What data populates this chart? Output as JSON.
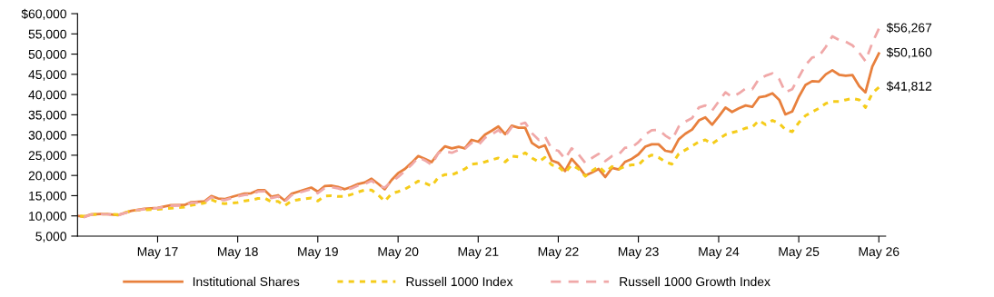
{
  "chart_data": {
    "type": "line",
    "x": [
      "2016-05",
      "2016-06",
      "2016-07",
      "2016-09",
      "2016-11",
      "2017-01",
      "2017-03",
      "2017-05",
      "2017-07",
      "2017-09",
      "2017-10",
      "2017-12",
      "2018-01",
      "2018-02",
      "2018-03",
      "2018-05",
      "2018-06",
      "2018-07",
      "2018-08",
      "2018-09",
      "2018-10",
      "2018-11",
      "2018-12",
      "2019-01",
      "2019-02",
      "2019-04",
      "2019-05",
      "2019-06",
      "2019-07",
      "2019-08",
      "2019-09",
      "2019-10",
      "2019-11",
      "2019-12",
      "2020-01",
      "2020-02",
      "2020-03",
      "2020-04",
      "2020-05",
      "2020-06",
      "2020-07",
      "2020-08",
      "2020-09",
      "2020-10",
      "2020-11",
      "2020-12",
      "2021-01",
      "2021-02",
      "2021-03",
      "2021-04",
      "2021-05",
      "2021-06",
      "2021-07",
      "2021-08",
      "2021-09",
      "2021-10",
      "2021-11",
      "2021-12",
      "2022-01",
      "2022-02",
      "2022-03",
      "2022-04",
      "2022-05",
      "2022-06",
      "2022-07",
      "2022-08",
      "2022-09",
      "2022-10",
      "2022-11",
      "2022-12",
      "2023-01",
      "2023-02",
      "2023-03",
      "2023-04",
      "2023-05",
      "2023-06",
      "2023-07",
      "2023-08",
      "2023-09",
      "2023-10",
      "2023-11",
      "2023-12",
      "2024-01",
      "2024-02",
      "2024-03",
      "2024-04",
      "2024-05",
      "2024-06",
      "2024-07",
      "2024-08",
      "2024-09",
      "2024-10",
      "2024-11",
      "2024-12",
      "2025-01",
      "2025-02",
      "2025-03",
      "2025-04",
      "2025-05",
      "2025-06",
      "2025-07",
      "2025-08",
      "2025-09",
      "2025-10",
      "2025-11",
      "2025-12",
      "2026-01",
      "2026-02",
      "2026-03",
      "2026-04",
      "2026-05"
    ],
    "series": [
      {
        "name": "Institutional Shares",
        "color": "#e8803d",
        "line_style": "solid",
        "values": [
          10000,
          9800,
          10350,
          10500,
          10200,
          11250,
          11750,
          12000,
          12650,
          12700,
          13400,
          13600,
          14900,
          14300,
          14150,
          15100,
          15500,
          15600,
          16350,
          16350,
          14750,
          15100,
          13800,
          15450,
          16000,
          17000,
          16000,
          17350,
          17500,
          17150,
          16600,
          17150,
          17900,
          18250,
          19200,
          17900,
          16600,
          18850,
          20560,
          21600,
          23100,
          24800,
          24100,
          23300,
          25600,
          27200,
          26700,
          27100,
          26700,
          28800,
          28350,
          30100,
          31050,
          32100,
          30200,
          32300,
          31800,
          31800,
          28050,
          26900,
          27450,
          23700,
          23100,
          21100,
          24100,
          22200,
          20000,
          20700,
          21600,
          19600,
          21850,
          21450,
          23350,
          24100,
          25200,
          27100,
          27700,
          27700,
          26100,
          25800,
          28950,
          30300,
          31350,
          33600,
          34350,
          32550,
          34550,
          36800,
          35700,
          36600,
          37300,
          36950,
          39300,
          39600,
          40300,
          38700,
          35100,
          35800,
          39400,
          42400,
          43300,
          43200,
          45000,
          46000,
          44900,
          44650,
          44800,
          42050,
          40550,
          46900,
          50160
        ]
      },
      {
        "name": "Russell 1000 Index",
        "color": "#f5cc1a",
        "line_style": "dotted",
        "values": [
          10000,
          9900,
          10300,
          10500,
          10300,
          11250,
          11500,
          11600,
          11900,
          12200,
          12600,
          13200,
          14000,
          13300,
          13000,
          13300,
          13700,
          13900,
          14300,
          14400,
          13500,
          13600,
          12500,
          13700,
          14000,
          14400,
          13700,
          14900,
          15000,
          14800,
          14800,
          15300,
          15900,
          16400,
          16400,
          15150,
          13600,
          15500,
          16000,
          16600,
          17550,
          18600,
          18100,
          17350,
          19600,
          20200,
          20150,
          20870,
          21600,
          22750,
          22950,
          23350,
          23850,
          24300,
          23350,
          24800,
          24600,
          25600,
          24300,
          23350,
          24450,
          22600,
          22200,
          20700,
          22600,
          21600,
          19800,
          21100,
          22200,
          20700,
          22200,
          21600,
          22200,
          22600,
          22600,
          24250,
          25050,
          24450,
          23350,
          22800,
          25350,
          26300,
          27300,
          28350,
          28800,
          27800,
          28950,
          30100,
          30600,
          31050,
          31700,
          31950,
          33600,
          32550,
          33600,
          32850,
          31350,
          30800,
          33050,
          34800,
          35700,
          36600,
          37800,
          38300,
          38300,
          38700,
          39050,
          38700,
          36800,
          40300,
          41812
        ]
      },
      {
        "name": "Russell 1000 Growth Index",
        "color": "#f0a8a8",
        "line_style": "dashed",
        "values": [
          10000,
          9700,
          10300,
          10450,
          10150,
          11200,
          11650,
          11900,
          12500,
          12600,
          13200,
          13400,
          14600,
          14100,
          13900,
          14800,
          15200,
          15300,
          16000,
          16100,
          14400,
          14800,
          13500,
          15100,
          15700,
          16600,
          15600,
          16900,
          17100,
          16800,
          16300,
          16800,
          17500,
          17900,
          18700,
          17400,
          17000,
          18470,
          19600,
          21100,
          22600,
          24450,
          23700,
          22600,
          25600,
          25950,
          25600,
          26300,
          26550,
          28050,
          27450,
          29300,
          30100,
          31200,
          29700,
          31950,
          32550,
          33050,
          30450,
          28800,
          29700,
          26550,
          26100,
          24100,
          26700,
          25200,
          23100,
          24300,
          25350,
          23550,
          24800,
          25200,
          26850,
          26950,
          28200,
          30100,
          31200,
          31300,
          29850,
          28800,
          32100,
          33300,
          34200,
          36800,
          37300,
          36050,
          38300,
          40550,
          39400,
          40300,
          41500,
          41300,
          43900,
          44650,
          45250,
          43800,
          40550,
          41300,
          44300,
          47300,
          49150,
          49500,
          51750,
          54400,
          53500,
          53050,
          52150,
          50300,
          48250,
          52750,
          56267
        ]
      }
    ],
    "annotations": [
      {
        "text": "$56,267",
        "x": "2026-05",
        "y": 56267
      },
      {
        "text": "$50,160",
        "x": "2026-05",
        "y": 50160
      },
      {
        "text": "$41,812",
        "x": "2026-05",
        "y": 41812
      }
    ],
    "xlim": [
      "2016-05",
      "2026-06"
    ],
    "xticks": [
      {
        "value": "2017-05",
        "label": "May 17"
      },
      {
        "value": "2018-05",
        "label": "May 18"
      },
      {
        "value": "2019-05",
        "label": "May 19"
      },
      {
        "value": "2020-05",
        "label": "May 20"
      },
      {
        "value": "2021-05",
        "label": "May 21"
      },
      {
        "value": "2022-05",
        "label": "May 22"
      },
      {
        "value": "2023-05",
        "label": "May 23"
      },
      {
        "value": "2024-05",
        "label": "May 24"
      },
      {
        "value": "2025-05",
        "label": "May 25"
      },
      {
        "value": "2026-05",
        "label": "May 26"
      }
    ],
    "ylim": [
      5000,
      60000
    ],
    "yticks": [
      {
        "value": 5000,
        "label": "5,000"
      },
      {
        "value": 10000,
        "label": "10,000"
      },
      {
        "value": 15000,
        "label": "15,000"
      },
      {
        "value": 20000,
        "label": "20,000"
      },
      {
        "value": 25000,
        "label": "25,000"
      },
      {
        "value": 30000,
        "label": "30,000"
      },
      {
        "value": 35000,
        "label": "35,000"
      },
      {
        "value": 40000,
        "label": "40,000"
      },
      {
        "value": 45000,
        "label": "45,000"
      },
      {
        "value": 50000,
        "label": "50,000"
      },
      {
        "value": 55000,
        "label": "55,000"
      },
      {
        "value": 60000,
        "label": "$60,000"
      }
    ],
    "grid": false,
    "legend": "bottom",
    "marker": "none"
  }
}
